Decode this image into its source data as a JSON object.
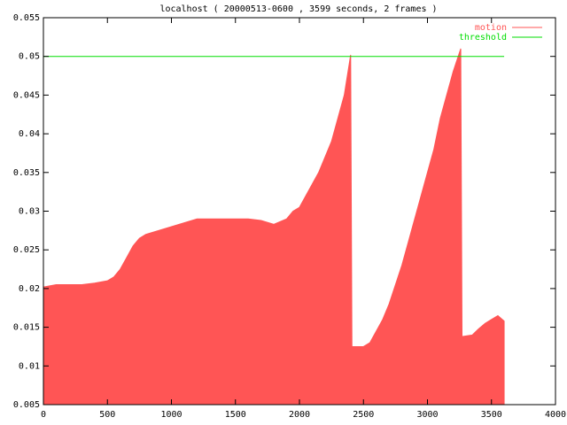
{
  "chart_data": {
    "type": "area",
    "title": "localhost ( 20000513-0600 , 3599 seconds, 2 frames )",
    "xlim": [
      0,
      4000
    ],
    "ylim": [
      0.005,
      0.055
    ],
    "xticks": [
      0,
      500,
      1000,
      1500,
      2000,
      2500,
      3000,
      3500,
      4000
    ],
    "yticks": [
      0.005,
      0.01,
      0.015,
      0.02,
      0.025,
      0.03,
      0.035,
      0.04,
      0.045,
      0.05,
      0.055
    ],
    "legend": "top-right",
    "series": [
      {
        "name": "motion",
        "color": "#ff5555",
        "style": "filled",
        "x": [
          0,
          100,
          200,
          300,
          400,
          500,
          550,
          600,
          650,
          700,
          750,
          800,
          900,
          1000,
          1100,
          1200,
          1300,
          1400,
          1500,
          1600,
          1700,
          1800,
          1900,
          1950,
          2000,
          2050,
          2100,
          2150,
          2200,
          2250,
          2300,
          2350,
          2400,
          2410,
          2500,
          2550,
          2600,
          2650,
          2700,
          2750,
          2800,
          2850,
          2900,
          2950,
          3000,
          3050,
          3100,
          3150,
          3200,
          3250,
          3260,
          3270,
          3350,
          3400,
          3450,
          3500,
          3550,
          3599
        ],
        "values": [
          0.0202,
          0.0205,
          0.0205,
          0.0205,
          0.0207,
          0.021,
          0.0215,
          0.0225,
          0.024,
          0.0255,
          0.0265,
          0.027,
          0.0275,
          0.028,
          0.0285,
          0.029,
          0.029,
          0.029,
          0.029,
          0.029,
          0.0288,
          0.0283,
          0.029,
          0.03,
          0.0305,
          0.032,
          0.0335,
          0.035,
          0.037,
          0.039,
          0.042,
          0.045,
          0.0502,
          0.0125,
          0.0125,
          0.013,
          0.0145,
          0.016,
          0.018,
          0.0205,
          0.023,
          0.026,
          0.029,
          0.032,
          0.035,
          0.038,
          0.042,
          0.045,
          0.048,
          0.0505,
          0.051,
          0.0138,
          0.014,
          0.0148,
          0.0155,
          0.016,
          0.0165,
          0.0158
        ]
      },
      {
        "name": "threshold",
        "color": "#00dd00",
        "style": "line",
        "x": [
          0,
          3599
        ],
        "values": [
          0.05,
          0.05
        ]
      }
    ]
  }
}
